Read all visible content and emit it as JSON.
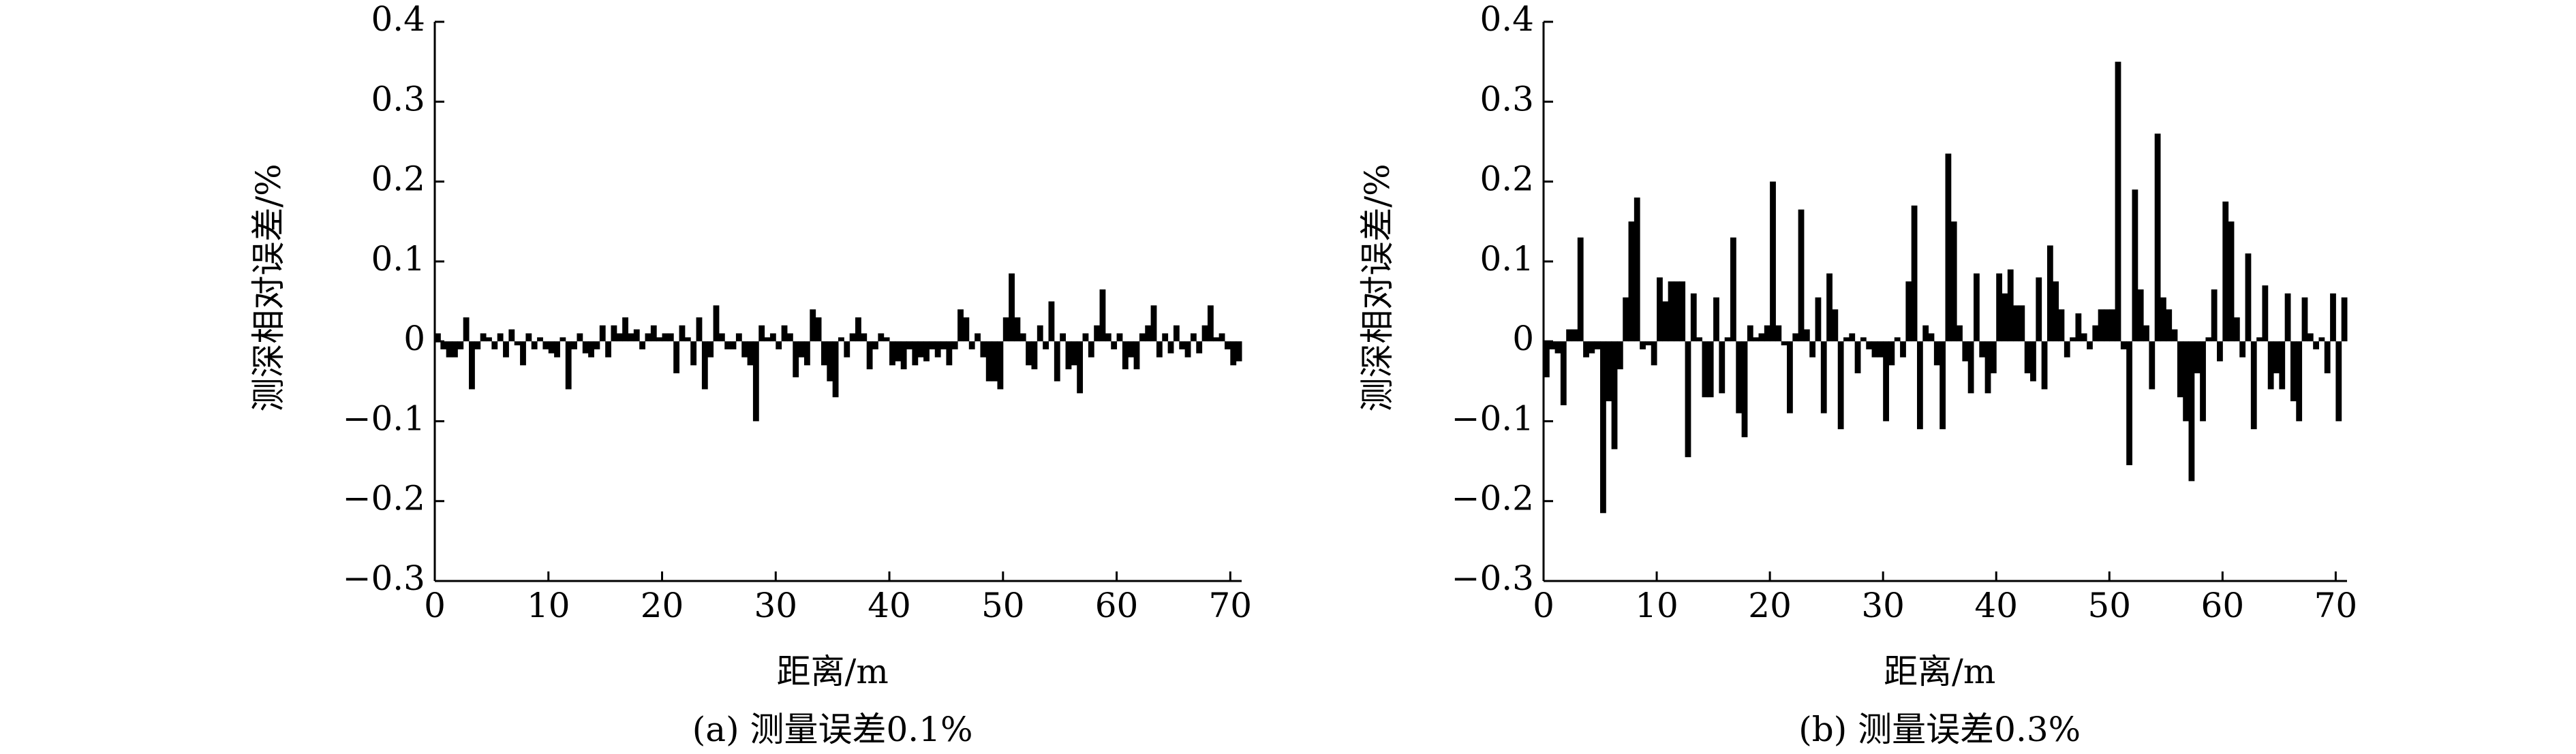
{
  "chart_data": [
    {
      "type": "bar",
      "caption": "(a) 测量误差0.1%",
      "xlabel": "距离/m",
      "ylabel": "测深相对误差/%",
      "color": "#000000",
      "xlim": [
        0,
        71
      ],
      "ylim": [
        -0.3,
        0.4
      ],
      "bar_width": 0.5,
      "xticks": [
        0,
        10,
        20,
        30,
        40,
        50,
        60,
        70
      ],
      "yticks": [
        {
          "value": -0.3,
          "label": "−0.3"
        },
        {
          "value": -0.2,
          "label": "−0.2"
        },
        {
          "value": -0.1,
          "label": "−0.1"
        },
        0,
        0.1,
        0.2,
        0.3,
        0.4
      ],
      "x": [
        0,
        0.5,
        1,
        1.5,
        2,
        2.5,
        3,
        3.5,
        4,
        4.5,
        5,
        5.5,
        6,
        6.5,
        7,
        7.5,
        8,
        8.5,
        9,
        9.5,
        10,
        10.5,
        11,
        11.5,
        12,
        12.5,
        13,
        13.5,
        14,
        14.5,
        15,
        15.5,
        16,
        16.5,
        17,
        17.5,
        18,
        18.5,
        19,
        19.5,
        20,
        20.5,
        21,
        21.5,
        22,
        22.5,
        23,
        23.5,
        24,
        24.5,
        25,
        25.5,
        26,
        26.5,
        27,
        27.5,
        28,
        28.5,
        29,
        29.5,
        30,
        30.5,
        31,
        31.5,
        32,
        32.5,
        33,
        33.5,
        34,
        34.5,
        35,
        35.5,
        36,
        36.5,
        37,
        37.5,
        38,
        38.5,
        39,
        39.5,
        40,
        40.5,
        41,
        41.5,
        42,
        42.5,
        43,
        43.5,
        44,
        44.5,
        45,
        45.5,
        46,
        46.5,
        47,
        47.5,
        48,
        48.5,
        49,
        49.5,
        50,
        50.5,
        51,
        51.5,
        52,
        52.5,
        53,
        53.5,
        54,
        54.5,
        55,
        55.5,
        56,
        56.5,
        57,
        57.5,
        58,
        58.5,
        59,
        59.5,
        60,
        60.5,
        61,
        61.5,
        62,
        62.5,
        63,
        63.5,
        64,
        64.5,
        65,
        65.5,
        66,
        66.5,
        67,
        67.5,
        68,
        68.5,
        69,
        69.5,
        70,
        70.5
      ],
      "values": [
        0.01,
        -0.01,
        -0.02,
        -0.02,
        -0.01,
        0.03,
        -0.06,
        -0.01,
        0.01,
        0.005,
        -0.01,
        0.01,
        -0.02,
        0.015,
        -0.005,
        -0.03,
        0.01,
        -0.01,
        0.005,
        -0.01,
        -0.015,
        -0.02,
        0.005,
        -0.06,
        -0.01,
        0.01,
        -0.015,
        -0.02,
        -0.01,
        0.02,
        -0.02,
        0.02,
        0.01,
        0.03,
        0.01,
        0.015,
        -0.01,
        0.01,
        0.02,
        0.005,
        0.01,
        0.01,
        -0.04,
        0.02,
        0.005,
        -0.03,
        0.03,
        -0.06,
        -0.02,
        0.045,
        0.01,
        -0.01,
        -0.01,
        0.01,
        -0.02,
        -0.03,
        -0.1,
        0.02,
        0.005,
        0.01,
        -0.01,
        0.02,
        0.01,
        -0.045,
        -0.02,
        -0.03,
        0.04,
        0.03,
        -0.03,
        -0.05,
        -0.07,
        0.005,
        -0.02,
        0.01,
        0.03,
        0.01,
        -0.035,
        -0.01,
        0.01,
        0.005,
        -0.03,
        -0.025,
        -0.035,
        -0.01,
        -0.03,
        -0.02,
        -0.025,
        -0.01,
        -0.02,
        -0.01,
        -0.03,
        -0.01,
        0.04,
        0.03,
        -0.01,
        0.01,
        -0.02,
        -0.05,
        -0.05,
        -0.06,
        0.03,
        0.085,
        0.03,
        0.01,
        -0.03,
        -0.035,
        0.02,
        -0.01,
        0.05,
        -0.05,
        0.01,
        -0.035,
        -0.03,
        -0.065,
        0.01,
        -0.02,
        0.02,
        0.065,
        0.01,
        -0.01,
        0.01,
        -0.035,
        -0.02,
        -0.035,
        0.01,
        0.02,
        0.045,
        -0.02,
        0.01,
        -0.015,
        0.02,
        -0.01,
        -0.02,
        0.01,
        -0.015,
        0.02,
        0.045,
        0.005,
        0.01,
        -0.01,
        -0.03,
        -0.025
      ]
    },
    {
      "type": "bar",
      "caption": "(b) 测量误差0.3%",
      "xlabel": "距离/m",
      "ylabel": "测深相对误差/%",
      "color": "#000000",
      "xlim": [
        0,
        71
      ],
      "ylim": [
        -0.3,
        0.4
      ],
      "bar_width": 0.5,
      "xticks": [
        0,
        10,
        20,
        30,
        40,
        50,
        60,
        70
      ],
      "yticks": [
        {
          "value": -0.3,
          "label": "−0.3"
        },
        {
          "value": -0.2,
          "label": "−0.2"
        },
        {
          "value": -0.1,
          "label": "−0.1"
        },
        0,
        0.1,
        0.2,
        0.3,
        0.4
      ],
      "x": [
        0,
        0.5,
        1,
        1.5,
        2,
        2.5,
        3,
        3.5,
        4,
        4.5,
        5,
        5.5,
        6,
        6.5,
        7,
        7.5,
        8,
        8.5,
        9,
        9.5,
        10,
        10.5,
        11,
        11.5,
        12,
        12.5,
        13,
        13.5,
        14,
        14.5,
        15,
        15.5,
        16,
        16.5,
        17,
        17.5,
        18,
        18.5,
        19,
        19.5,
        20,
        20.5,
        21,
        21.5,
        22,
        22.5,
        23,
        23.5,
        24,
        24.5,
        25,
        25.5,
        26,
        26.5,
        27,
        27.5,
        28,
        28.5,
        29,
        29.5,
        30,
        30.5,
        31,
        31.5,
        32,
        32.5,
        33,
        33.5,
        34,
        34.5,
        35,
        35.5,
        36,
        36.5,
        37,
        37.5,
        38,
        38.5,
        39,
        39.5,
        40,
        40.5,
        41,
        41.5,
        42,
        42.5,
        43,
        43.5,
        44,
        44.5,
        45,
        45.5,
        46,
        46.5,
        47,
        47.5,
        48,
        48.5,
        49,
        49.5,
        50,
        50.5,
        51,
        51.5,
        52,
        52.5,
        53,
        53.5,
        54,
        54.5,
        55,
        55.5,
        56,
        56.5,
        57,
        57.5,
        58,
        58.5,
        59,
        59.5,
        60,
        60.5,
        61,
        61.5,
        62,
        62.5,
        63,
        63.5,
        64,
        64.5,
        65,
        65.5,
        66,
        66.5,
        67,
        67.5,
        68,
        68.5,
        69,
        69.5,
        70,
        70.5
      ],
      "values": [
        -0.045,
        -0.01,
        -0.015,
        -0.08,
        0.015,
        0.015,
        0.13,
        -0.02,
        -0.015,
        -0.01,
        -0.215,
        -0.075,
        -0.135,
        -0.035,
        0.055,
        0.15,
        0.18,
        -0.01,
        -0.005,
        -0.03,
        0.08,
        0.05,
        0.075,
        0.075,
        0.075,
        -0.145,
        0.06,
        0.005,
        -0.07,
        -0.07,
        0.055,
        -0.065,
        0.005,
        0.13,
        -0.09,
        -0.12,
        0.02,
        0.005,
        0.01,
        0.02,
        0.2,
        0.02,
        -0.005,
        -0.09,
        0.01,
        0.165,
        0.015,
        -0.02,
        0.055,
        -0.09,
        0.085,
        0.04,
        -0.11,
        0.005,
        0.01,
        -0.04,
        0.005,
        -0.01,
        -0.02,
        -0.02,
        -0.1,
        -0.03,
        0.005,
        -0.02,
        0.075,
        0.17,
        -0.11,
        0.02,
        0.01,
        -0.03,
        -0.11,
        0.235,
        0.15,
        0.02,
        -0.025,
        -0.065,
        0.085,
        -0.02,
        -0.065,
        -0.04,
        0.085,
        0.06,
        0.09,
        0.045,
        0.045,
        -0.04,
        -0.05,
        0.08,
        -0.06,
        0.12,
        0.075,
        0.04,
        -0.02,
        0.005,
        0.035,
        0.01,
        -0.01,
        0.02,
        0.04,
        0.04,
        0.04,
        0.35,
        -0.01,
        -0.155,
        0.19,
        0.065,
        0.02,
        -0.06,
        0.26,
        0.055,
        0.04,
        0.015,
        -0.07,
        -0.1,
        -0.175,
        -0.04,
        -0.1,
        0.005,
        0.065,
        -0.025,
        0.175,
        0.15,
        0.03,
        -0.02,
        0.11,
        -0.11,
        0.005,
        0.07,
        -0.06,
        -0.04,
        -0.06,
        0.06,
        -0.075,
        -0.1,
        0.055,
        0.01,
        -0.01,
        0.005,
        -0.04,
        0.06,
        -0.1,
        0.055
      ]
    }
  ]
}
